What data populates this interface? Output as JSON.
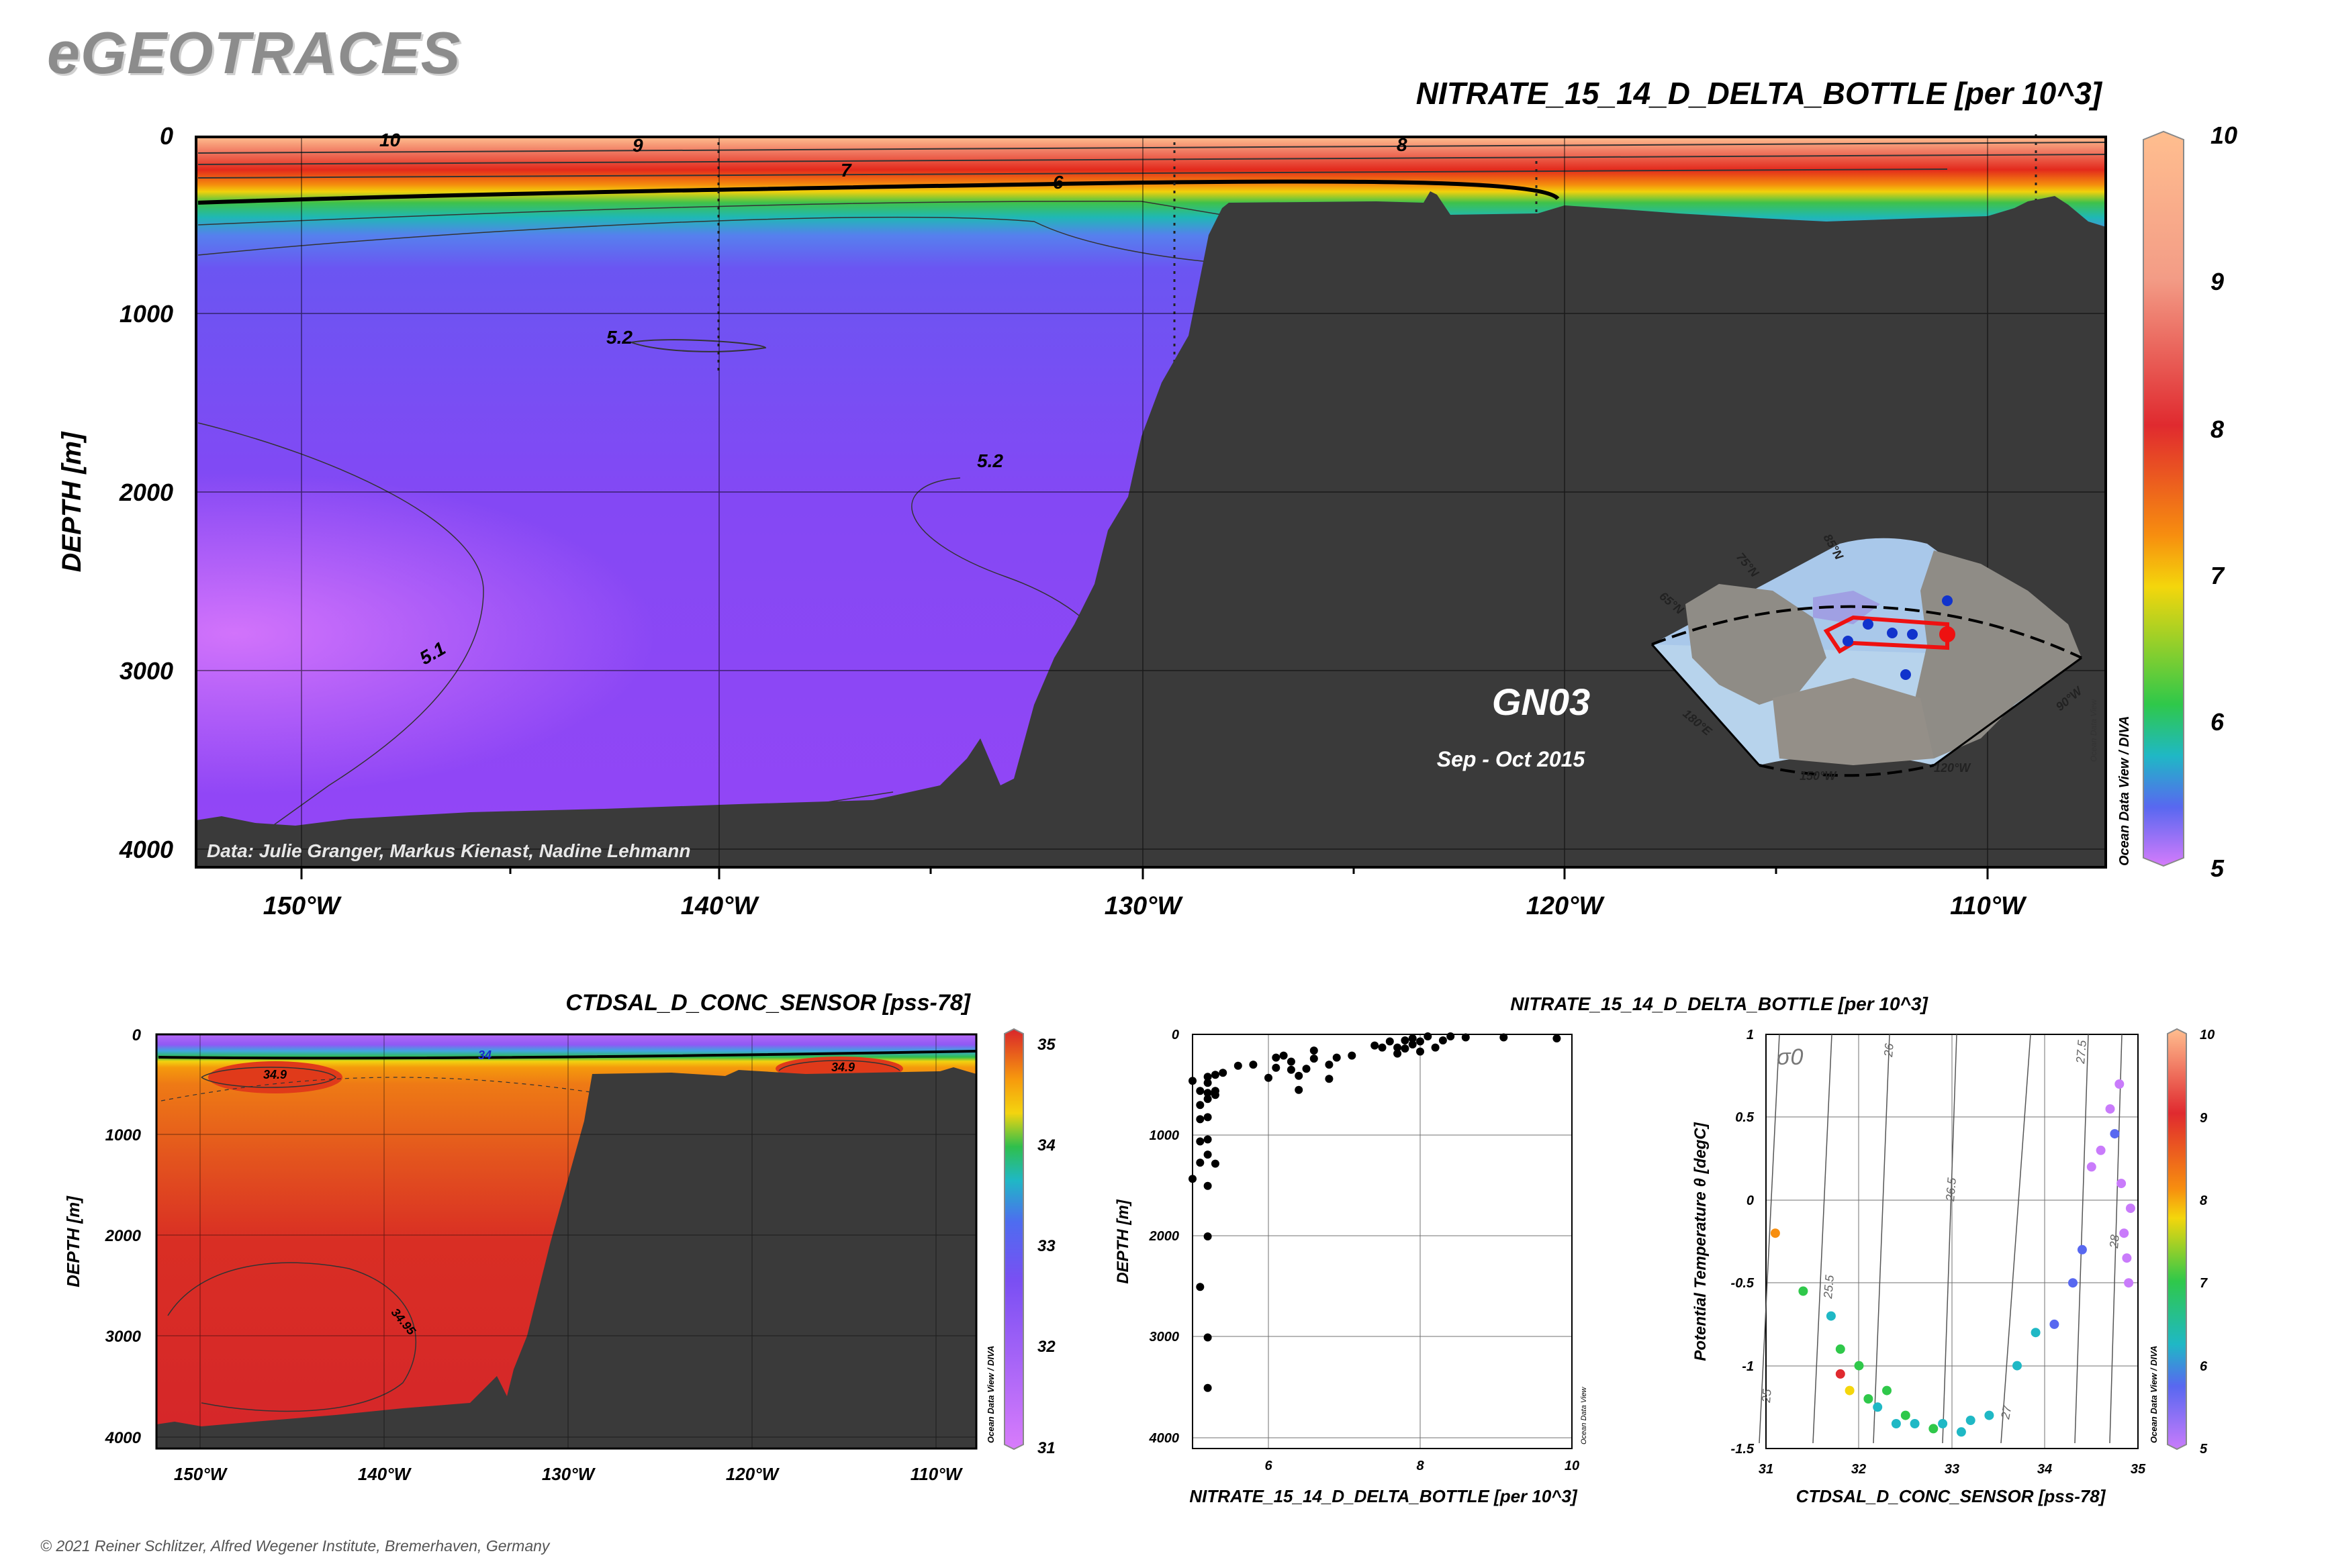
{
  "brand": "eGEOTRACES",
  "copyright": "© 2021 Reiner Schlitzer, Alfred Wegener Institute, Bremerhaven, Germany",
  "credit_odv": "Ocean Data View / DIVA",
  "credit_odv_short": "Ocean Data View",
  "main_section": {
    "title": "NITRATE_15_14_D_DELTA_BOTTLE [per 10^3]",
    "ylabel": "DEPTH [m]",
    "yticks": [
      "0",
      "1000",
      "2000",
      "3000",
      "4000"
    ],
    "xticks": [
      "150°W",
      "140°W",
      "130°W",
      "120°W",
      "110°W"
    ],
    "colorbar_ticks": [
      "10",
      "9",
      "8",
      "7",
      "6",
      "5"
    ],
    "contour_labels": [
      "10",
      "9",
      "8",
      "7",
      "6",
      "5.2",
      "5.2",
      "5.1"
    ],
    "data_credit": "Data: Julie Granger, Markus Kienast, Nadine Lehmann",
    "cruise": "GN03",
    "period": "Sep - Oct 2015",
    "map_labels": [
      "85°N",
      "75°N",
      "65°N",
      "180°E",
      "150°W",
      "120°W",
      "90°W"
    ]
  },
  "salinity_section": {
    "title": "CTDSAL_D_CONC_SENSOR [pss-78]",
    "ylabel": "DEPTH [m]",
    "yticks": [
      "0",
      "1000",
      "2000",
      "3000",
      "4000"
    ],
    "xticks": [
      "150°W",
      "140°W",
      "130°W",
      "120°W",
      "110°W"
    ],
    "colorbar_ticks": [
      "35",
      "34",
      "33",
      "32",
      "31"
    ],
    "contour_labels": [
      "34.9",
      "34.9",
      "34",
      "34.95"
    ]
  },
  "chart_data": [
    {
      "type": "heatmap",
      "title": "NITRATE_15_14_D_DELTA_BOTTLE [per 10^3]",
      "xlabel": "",
      "ylabel": "DEPTH [m]",
      "xlim": [
        -152.5,
        -107.5
      ],
      "ylim": [
        4100,
        0
      ],
      "colorbar_range": [
        5,
        10
      ],
      "colors": {
        "deep": "#8a4df5",
        "mid": "#22c36a",
        "shallow": "#ffb98c",
        "bathymetry": "#3a3a3a"
      }
    },
    {
      "type": "heatmap",
      "title": "CTDSAL_D_CONC_SENSOR [pss-78]",
      "xlabel": "",
      "ylabel": "DEPTH [m]",
      "xlim": [
        -152.5,
        -107.5
      ],
      "ylim": [
        4100,
        0
      ],
      "colorbar_range": [
        31,
        35
      ],
      "colors": {
        "deep": "#d7272a",
        "intermediate": "#e8641c",
        "surface": "#b66af7",
        "bathymetry": "#3a3a3a"
      }
    },
    {
      "type": "scatter",
      "title": "",
      "xlabel": "NITRATE_15_14_D_DELTA_BOTTLE [per 10^3]",
      "ylabel": "DEPTH [m]",
      "xlim": [
        5,
        10
      ],
      "ylim": [
        4100,
        0
      ],
      "xticks": [
        "6",
        "8",
        "10"
      ],
      "yticks": [
        "0",
        "1000",
        "2000",
        "3000",
        "4000"
      ],
      "points": [
        {
          "x": 5.0,
          "y": 1430
        },
        {
          "x": 5.1,
          "y": 1270
        },
        {
          "x": 5.2,
          "y": 1190
        },
        {
          "x": 5.1,
          "y": 1060
        },
        {
          "x": 5.2,
          "y": 1040
        },
        {
          "x": 5.1,
          "y": 840
        },
        {
          "x": 5.2,
          "y": 820
        },
        {
          "x": 5.1,
          "y": 700
        },
        {
          "x": 5.2,
          "y": 640
        },
        {
          "x": 5.3,
          "y": 600
        },
        {
          "x": 5.2,
          "y": 580
        },
        {
          "x": 5.3,
          "y": 560
        },
        {
          "x": 5.2,
          "y": 420
        },
        {
          "x": 5.3,
          "y": 400
        },
        {
          "x": 5.4,
          "y": 380
        },
        {
          "x": 5.1,
          "y": 560
        },
        {
          "x": 5.0,
          "y": 460
        },
        {
          "x": 5.2,
          "y": 480
        },
        {
          "x": 5.2,
          "y": 1500
        },
        {
          "x": 5.3,
          "y": 1280
        },
        {
          "x": 5.2,
          "y": 2000
        },
        {
          "x": 5.1,
          "y": 2500
        },
        {
          "x": 5.2,
          "y": 3000
        },
        {
          "x": 5.2,
          "y": 3500
        },
        {
          "x": 5.6,
          "y": 310
        },
        {
          "x": 5.8,
          "y": 300
        },
        {
          "x": 6.0,
          "y": 430
        },
        {
          "x": 6.1,
          "y": 330
        },
        {
          "x": 6.1,
          "y": 230
        },
        {
          "x": 6.2,
          "y": 210
        },
        {
          "x": 6.3,
          "y": 350
        },
        {
          "x": 6.3,
          "y": 270
        },
        {
          "x": 6.4,
          "y": 410
        },
        {
          "x": 6.4,
          "y": 550
        },
        {
          "x": 6.5,
          "y": 340
        },
        {
          "x": 6.6,
          "y": 240
        },
        {
          "x": 6.6,
          "y": 160
        },
        {
          "x": 6.8,
          "y": 300
        },
        {
          "x": 6.8,
          "y": 440
        },
        {
          "x": 6.9,
          "y": 230
        },
        {
          "x": 7.1,
          "y": 210
        },
        {
          "x": 7.5,
          "y": 130
        },
        {
          "x": 7.6,
          "y": 70
        },
        {
          "x": 7.7,
          "y": 190
        },
        {
          "x": 7.8,
          "y": 60
        },
        {
          "x": 7.8,
          "y": 140
        },
        {
          "x": 7.9,
          "y": 40
        },
        {
          "x": 7.9,
          "y": 100
        },
        {
          "x": 8.0,
          "y": 170
        },
        {
          "x": 8.0,
          "y": 70
        },
        {
          "x": 8.1,
          "y": 20
        },
        {
          "x": 8.2,
          "y": 130
        },
        {
          "x": 8.3,
          "y": 60
        },
        {
          "x": 8.4,
          "y": 20
        },
        {
          "x": 8.6,
          "y": 30
        },
        {
          "x": 9.1,
          "y": 30
        },
        {
          "x": 9.8,
          "y": 40
        },
        {
          "x": 7.4,
          "y": 110
        },
        {
          "x": 7.7,
          "y": 130
        }
      ]
    },
    {
      "type": "scatter",
      "title": "NITRATE_15_14_D_DELTA_BOTTLE [per 10^3]",
      "xlabel": "CTDSAL_D_CONC_SENSOR [pss-78]",
      "ylabel": "Potential Temperature θ [degC]",
      "xlim": [
        31,
        35
      ],
      "ylim": [
        -1.5,
        1
      ],
      "xticks": [
        "31",
        "32",
        "33",
        "34",
        "35"
      ],
      "yticks": [
        "1",
        "0.5",
        "0",
        "-0.5",
        "-1",
        "-1.5"
      ],
      "colorbar_range": [
        5,
        10
      ],
      "colorbar_ticks": [
        "10",
        "9",
        "8",
        "7",
        "6",
        "5"
      ],
      "sigma_label": "σ0",
      "isopycnal_labels": [
        "25",
        "25.5",
        "26",
        "26.5",
        "27",
        "27.5",
        "28"
      ],
      "points": [
        {
          "x": 31.1,
          "y": -0.2,
          "c": 8.8
        },
        {
          "x": 31.4,
          "y": -0.55,
          "c": 7.3
        },
        {
          "x": 31.7,
          "y": -0.7,
          "c": 6.8
        },
        {
          "x": 31.8,
          "y": -0.9,
          "c": 7.5
        },
        {
          "x": 31.8,
          "y": -1.05,
          "c": 9.5
        },
        {
          "x": 31.9,
          "y": -1.15,
          "c": 8.0
        },
        {
          "x": 32.0,
          "y": -1.0,
          "c": 7.6
        },
        {
          "x": 32.1,
          "y": -1.2,
          "c": 7.0
        },
        {
          "x": 32.2,
          "y": -1.25,
          "c": 6.8
        },
        {
          "x": 32.3,
          "y": -1.15,
          "c": 7.3
        },
        {
          "x": 32.4,
          "y": -1.35,
          "c": 6.9
        },
        {
          "x": 32.5,
          "y": -1.3,
          "c": 7.0
        },
        {
          "x": 32.6,
          "y": -1.35,
          "c": 6.8
        },
        {
          "x": 32.8,
          "y": -1.38,
          "c": 7.2
        },
        {
          "x": 32.9,
          "y": -1.35,
          "c": 6.9
        },
        {
          "x": 33.1,
          "y": -1.4,
          "c": 6.6
        },
        {
          "x": 33.2,
          "y": -1.33,
          "c": 6.9
        },
        {
          "x": 33.4,
          "y": -1.3,
          "c": 6.8
        },
        {
          "x": 33.7,
          "y": -1.0,
          "c": 6.5
        },
        {
          "x": 33.9,
          "y": -0.8,
          "c": 6.4
        },
        {
          "x": 34.1,
          "y": -0.75,
          "c": 6.2
        },
        {
          "x": 34.3,
          "y": -0.5,
          "c": 5.8
        },
        {
          "x": 34.4,
          "y": -0.3,
          "c": 5.9
        },
        {
          "x": 34.5,
          "y": 0.2,
          "c": 5.7
        },
        {
          "x": 34.6,
          "y": 0.3,
          "c": 5.5
        },
        {
          "x": 34.7,
          "y": 0.55,
          "c": 5.4
        },
        {
          "x": 34.8,
          "y": 0.7,
          "c": 5.2
        },
        {
          "x": 34.85,
          "y": -0.2,
          "c": 5.3
        },
        {
          "x": 34.88,
          "y": -0.35,
          "c": 5.1
        },
        {
          "x": 34.9,
          "y": -0.5,
          "c": 5.1
        },
        {
          "x": 34.82,
          "y": 0.1,
          "c": 5.6
        },
        {
          "x": 34.75,
          "y": 0.4,
          "c": 5.9
        },
        {
          "x": 34.92,
          "y": -0.05,
          "c": 5.2
        }
      ]
    }
  ]
}
